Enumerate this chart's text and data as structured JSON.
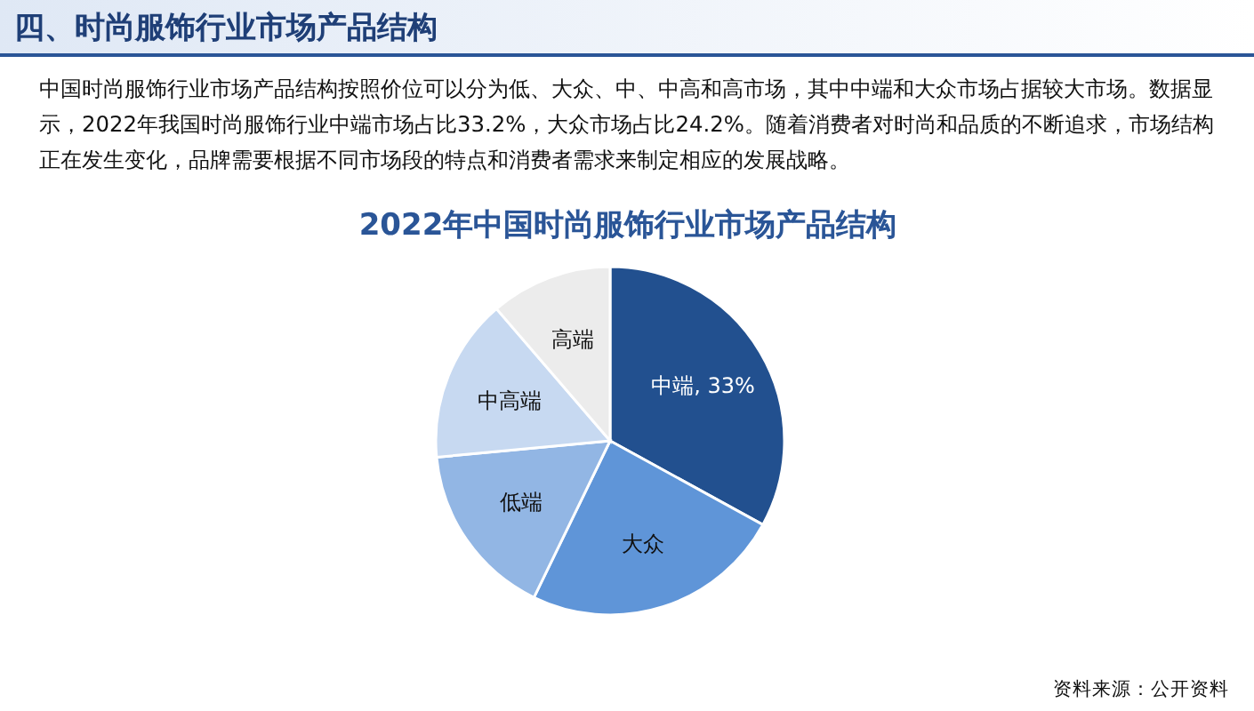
{
  "chart_data": {
    "type": "pie",
    "title": "2022年中国时尚服饰行业市场产品结构",
    "annotations": [
      "四、时尚服饰行业市场产品结构",
      "中国时尚服饰行业市场产品结构按照价位可以分为低、大众、中、中高和高市场，其中中端和大众市场占据较大市场。数据显示，2022年我国时尚服饰行业中端市场占比33.2%，大众市场占比24.2%。随着消费者对时尚和品质的不断追求，市场结构正在发生变化，品牌需要根据不同市场段的特点和消费者需求来制定相应的发展战略。",
      "资料来源：公开资料"
    ],
    "categories": [
      "中端",
      "大众",
      "低端",
      "中高端",
      "高端"
    ],
    "values": [
      33,
      24.2,
      16.3,
      15.2,
      11.3
    ],
    "value_labels": [
      "33%",
      null,
      null,
      null,
      null
    ],
    "colors": [
      "#22508f",
      "#5f95d8",
      "#92b6e4",
      "#c7d9f1",
      "#ececec"
    ]
  }
}
